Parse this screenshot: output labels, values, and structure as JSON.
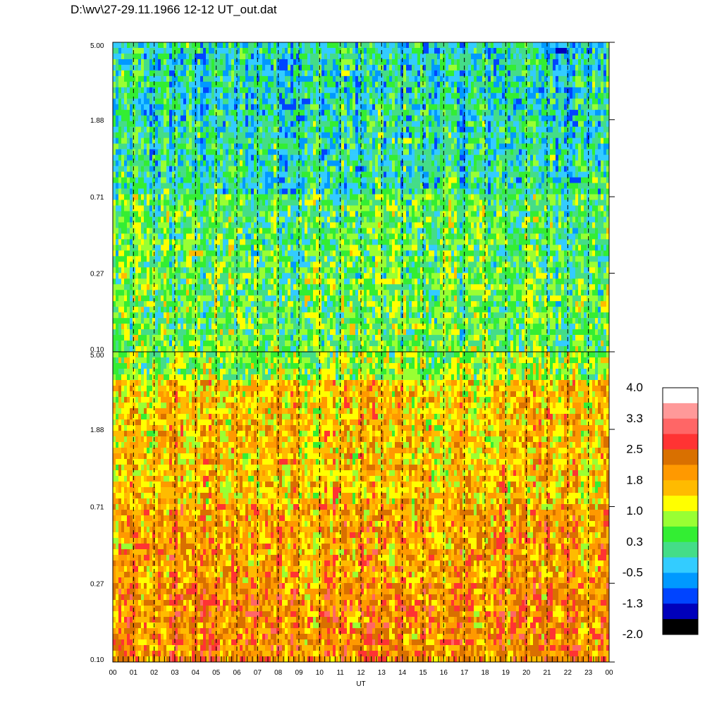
{
  "title": "D:\\wv\\27-29.11.1966  12-12 UT_out.dat",
  "chart_data": [
    {
      "type": "heatmap",
      "panel": "upper",
      "title": "",
      "xlabel": "UT",
      "ylabel": "",
      "y_scale": "log",
      "ylim": [
        0.1,
        5.0
      ],
      "y_ticks": [
        "5.00",
        "1.88",
        "0.71",
        "0.27",
        "0.10"
      ],
      "x_ticks": [
        "00",
        "01",
        "02",
        "03",
        "04",
        "05",
        "06",
        "07",
        "08",
        "09",
        "10",
        "11",
        "12",
        "13",
        "14",
        "15",
        "16",
        "17",
        "18",
        "19",
        "20",
        "21",
        "22",
        "23",
        "00"
      ],
      "dashed_vertical_lines_at_hours": [
        1,
        2,
        3,
        4,
        5,
        6,
        7,
        8,
        9,
        10,
        11,
        12,
        13,
        14,
        15,
        16,
        17,
        18,
        19,
        20,
        21,
        22,
        23
      ],
      "dominant_levels_by_period": [
        {
          "period_range": "1.88-5.00",
          "typical_value": -0.1
        },
        {
          "period_range": "0.71-1.88",
          "typical_value": 0.0
        },
        {
          "period_range": "0.27-0.71",
          "typical_value": 0.4
        },
        {
          "period_range": "0.10-0.27",
          "typical_value": 0.5
        }
      ]
    },
    {
      "type": "heatmap",
      "panel": "lower",
      "title": "",
      "xlabel": "UT",
      "ylabel": "",
      "y_scale": "log",
      "ylim": [
        0.1,
        5.0
      ],
      "y_ticks": [
        "5.00",
        "1.88",
        "0.71",
        "0.27",
        "0.10"
      ],
      "x_ticks": [
        "00",
        "01",
        "02",
        "03",
        "04",
        "05",
        "06",
        "07",
        "08",
        "09",
        "10",
        "11",
        "12",
        "13",
        "14",
        "15",
        "16",
        "17",
        "18",
        "19",
        "20",
        "21",
        "22",
        "23",
        "00"
      ],
      "dashed_vertical_lines_at_hours": [
        1,
        2,
        3,
        4,
        5,
        6,
        7,
        8,
        9,
        10,
        11,
        12,
        13,
        14,
        15,
        16,
        17,
        18,
        19,
        20,
        21,
        22,
        23
      ],
      "dominant_levels_by_period": [
        {
          "period_range": "3.5-5.00",
          "typical_value": 0.7
        },
        {
          "period_range": "0.71-3.5",
          "typical_value": 1.5
        },
        {
          "period_range": "0.27-0.71",
          "typical_value": 1.8
        },
        {
          "period_range": "0.10-0.27",
          "typical_value": 2.0
        }
      ]
    }
  ],
  "colorbar": {
    "labels": [
      "4.0",
      "3.3",
      "2.5",
      "1.8",
      "1.0",
      "0.3",
      "-0.5",
      "-1.3",
      "-2.0"
    ],
    "range": [
      -2.0,
      4.0
    ],
    "colors_top_to_bottom": [
      "#ffffff",
      "#ff9999",
      "#ff6666",
      "#ff3333",
      "#d97000",
      "#ff9900",
      "#ffbb00",
      "#ffff00",
      "#99ff33",
      "#33ee33",
      "#44dd88",
      "#33ccff",
      "#0099ff",
      "#0044ff",
      "#0000bb",
      "#000000"
    ]
  }
}
